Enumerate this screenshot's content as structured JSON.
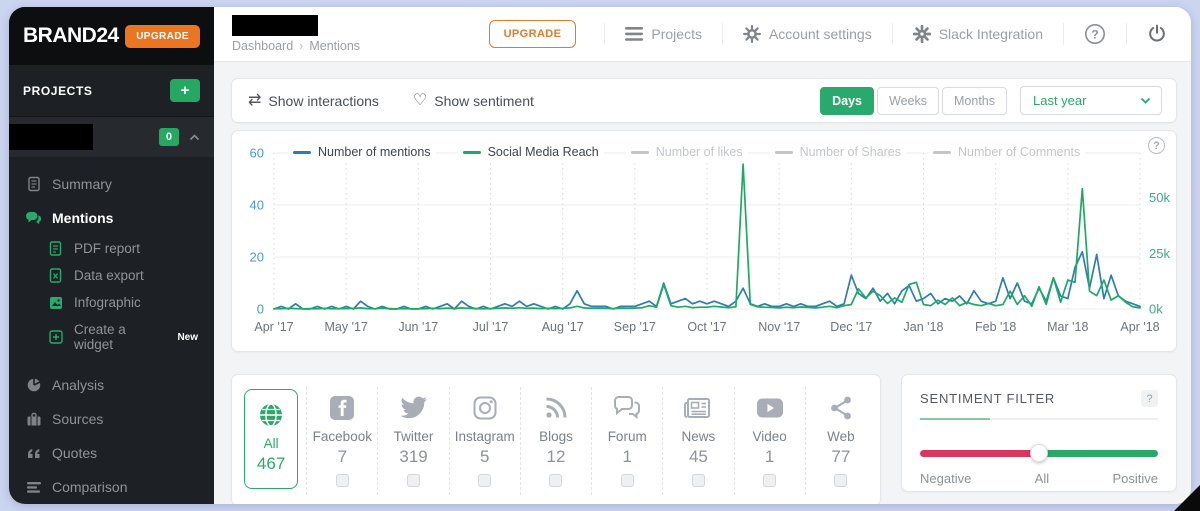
{
  "app": {
    "brand_logo": "BRAND24",
    "sidebar_upgrade": "UPGRADE"
  },
  "sidebar": {
    "projects_label": "PROJECTS",
    "add_project": "+",
    "project_count_badge": "0",
    "menu": {
      "summary": "Summary",
      "mentions": "Mentions",
      "pdf_report": "PDF report",
      "data_export": "Data export",
      "infographic": "Infographic",
      "create_widget": "Create a widget",
      "create_widget_badge": "New",
      "analysis": "Analysis",
      "sources": "Sources",
      "quotes": "Quotes",
      "comparison": "Comparison"
    }
  },
  "topbar": {
    "breadcrumb_root": "Dashboard",
    "breadcrumb_sep": "›",
    "breadcrumb_current": "Mentions",
    "upgrade_button": "UPGRADE",
    "nav_projects": "Projects",
    "nav_account_settings": "Account settings",
    "nav_slack_integration": "Slack Integration",
    "help_glyph": "?"
  },
  "controls": {
    "show_interactions": "Show interactions",
    "show_sentiment": "Show sentiment",
    "granularity": {
      "days": "Days",
      "weeks": "Weeks",
      "months": "Months",
      "active": "Days"
    },
    "range_select_value": "Last year"
  },
  "chart_data": {
    "type": "line",
    "title": "",
    "x_labels": [
      "Apr '17",
      "May '17",
      "Jun '17",
      "Jul '17",
      "Aug '17",
      "Sep '17",
      "Oct '17",
      "Nov '17",
      "Dec '17",
      "Jan '18",
      "Feb '18",
      "Mar '18",
      "Apr '18"
    ],
    "left_axis": {
      "label": "Number of mentions",
      "ticks": [
        0,
        20,
        40,
        60
      ],
      "max": 60,
      "color": "#4a9bce"
    },
    "right_axis": {
      "label": "Social Media Reach",
      "ticks_k": [
        0,
        25,
        50
      ],
      "labels": [
        "0k",
        "25k",
        "50k"
      ],
      "max_k": 70,
      "color": "#3faa8a"
    },
    "grid": true,
    "legend_position": "top-left-inside",
    "legend": [
      {
        "label": "Number of mentions",
        "color": "#2d7db3",
        "active": true
      },
      {
        "label": "Social Media Reach",
        "color": "#1faa63",
        "active": true
      },
      {
        "label": "Number of likes",
        "color": "#c3c6c9",
        "active": false
      },
      {
        "label": "Number of Shares",
        "color": "#c3c6c9",
        "active": false
      },
      {
        "label": "Number of Comments",
        "color": "#c3c6c9",
        "active": false
      }
    ],
    "series": [
      {
        "name": "Number of mentions",
        "axis": "left",
        "color": "#2d7db3",
        "values": [
          0,
          1,
          0,
          2,
          0,
          0,
          1,
          0,
          1,
          0,
          1,
          0,
          3,
          1,
          0,
          1,
          0,
          0,
          1,
          0,
          0,
          1,
          0,
          1,
          2,
          0,
          3,
          1,
          0,
          1,
          0,
          1,
          2,
          1,
          3,
          1,
          2,
          1,
          0,
          1,
          0,
          2,
          7,
          2,
          1,
          1,
          1,
          0,
          1,
          1,
          1,
          2,
          3,
          1,
          10,
          2,
          3,
          4,
          2,
          3,
          2,
          3,
          2,
          1,
          3,
          8,
          2,
          1,
          2,
          1,
          1,
          2,
          1,
          2,
          1,
          1,
          2,
          3,
          1,
          2,
          13,
          6,
          4,
          8,
          3,
          6,
          2,
          7,
          9,
          3,
          4,
          6,
          2,
          4,
          3,
          5,
          2,
          7,
          3,
          2,
          3,
          12,
          4,
          10,
          3,
          2,
          8,
          3,
          12,
          5,
          4,
          16,
          22,
          8,
          21,
          4,
          13,
          5,
          3,
          2,
          1
        ]
      },
      {
        "name": "Social Media Reach",
        "axis": "right",
        "unit": "thousands",
        "color": "#1faa63",
        "values": [
          0.2,
          0.1,
          0.3,
          0.2,
          0.1,
          0.2,
          0.1,
          0.3,
          0.1,
          0.2,
          0.2,
          0.3,
          0.5,
          0.2,
          0.1,
          0.3,
          0.2,
          0.1,
          0.2,
          0.1,
          0.1,
          0.2,
          0.3,
          0.2,
          0.4,
          0.2,
          0.5,
          0.3,
          0.2,
          0.1,
          0.2,
          0.3,
          0.5,
          0.3,
          0.6,
          0.3,
          0.4,
          0.2,
          0.3,
          0.2,
          0.3,
          0.5,
          1.2,
          0.5,
          0.3,
          0.4,
          0.3,
          0.2,
          0.4,
          0.3,
          0.4,
          0.6,
          1.5,
          0.8,
          11,
          1.5,
          0.8,
          1.2,
          0.6,
          0.8,
          0.8,
          1.2,
          0.9,
          0.6,
          1,
          65,
          2,
          1,
          0.8,
          0.7,
          0.5,
          0.8,
          0.6,
          0.9,
          0.7,
          0.5,
          0.8,
          1.2,
          0.6,
          1.5,
          2,
          9,
          5,
          8,
          6,
          2.5,
          5,
          3,
          11,
          12,
          2,
          1.5,
          4,
          2,
          5,
          1.5,
          3,
          2,
          1.5,
          2.5,
          1.5,
          2,
          8,
          2,
          6,
          1.2,
          10,
          2,
          14,
          3,
          13,
          12,
          54,
          8,
          6,
          13,
          4,
          6,
          3,
          1,
          0.5
        ]
      }
    ]
  },
  "sources_filter": {
    "items": [
      {
        "label": "All",
        "count": "467",
        "icon": "globe-icon",
        "selected": true
      },
      {
        "label": "Facebook",
        "count": "7",
        "icon": "facebook-icon"
      },
      {
        "label": "Twitter",
        "count": "319",
        "icon": "twitter-icon"
      },
      {
        "label": "Instagram",
        "count": "5",
        "icon": "instagram-icon"
      },
      {
        "label": "Blogs",
        "count": "12",
        "icon": "rss-icon"
      },
      {
        "label": "Forum",
        "count": "1",
        "icon": "forum-icon"
      },
      {
        "label": "News",
        "count": "45",
        "icon": "news-icon"
      },
      {
        "label": "Video",
        "count": "1",
        "icon": "video-icon"
      },
      {
        "label": "Web",
        "count": "77",
        "icon": "share-icon"
      }
    ]
  },
  "sentiment": {
    "title": "SENTIMENT FILTER",
    "help": "?",
    "value": "All",
    "labels": {
      "negative": "Negative",
      "all": "All",
      "positive": "Positive"
    },
    "colors": {
      "negative": "#d8385e",
      "positive": "#2aa968"
    }
  }
}
